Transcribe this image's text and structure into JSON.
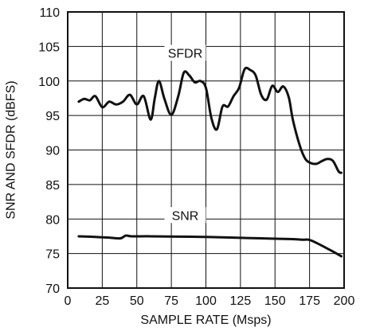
{
  "chart_data": {
    "type": "line",
    "xlabel": "SAMPLE RATE (Msps)",
    "ylabel": "SNR AND SFDR (dBFS)",
    "xlim": [
      0,
      200
    ],
    "ylim": [
      70,
      110
    ],
    "xticks": [
      0,
      25,
      50,
      75,
      100,
      125,
      150,
      175,
      200
    ],
    "yticks": [
      70,
      75,
      80,
      85,
      90,
      95,
      100,
      105,
      110
    ],
    "grid": true,
    "series": [
      {
        "name": "SFDR",
        "x": [
          8,
          12,
          16,
          20,
          25,
          30,
          35,
          40,
          45,
          50,
          55,
          60,
          63,
          66,
          70,
          75,
          80,
          84,
          88,
          92,
          96,
          100,
          104,
          108,
          112,
          116,
          120,
          124,
          128,
          132,
          136,
          140,
          144,
          148,
          152,
          156,
          160,
          163,
          168,
          172,
          176,
          180,
          184,
          188,
          192,
          196,
          198
        ],
        "y": [
          97.0,
          97.4,
          97.2,
          97.8,
          96.2,
          97.0,
          96.6,
          97.0,
          98.0,
          96.6,
          97.8,
          94.4,
          97.5,
          100.0,
          97.4,
          95.1,
          97.8,
          101.2,
          100.8,
          99.8,
          100.0,
          99.0,
          94.6,
          93.0,
          96.3,
          96.3,
          97.8,
          99.0,
          101.7,
          101.6,
          100.8,
          98.0,
          97.3,
          99.3,
          98.4,
          99.2,
          97.6,
          94.3,
          90.6,
          88.7,
          88.1,
          88.0,
          88.4,
          88.7,
          88.4,
          86.9,
          86.7
        ]
      },
      {
        "name": "SNR",
        "x": [
          8,
          20,
          30,
          38,
          42,
          46,
          60,
          80,
          100,
          120,
          140,
          160,
          170,
          176,
          190,
          198
        ],
        "y": [
          77.5,
          77.4,
          77.3,
          77.2,
          77.6,
          77.5,
          77.5,
          77.45,
          77.4,
          77.3,
          77.2,
          77.1,
          77.0,
          76.9,
          75.5,
          74.6
        ]
      }
    ],
    "annotations": [
      {
        "text": "SFDR",
        "x": 85,
        "y": 103.5
      },
      {
        "text": "SNR",
        "x": 85,
        "y": 80
      }
    ]
  }
}
